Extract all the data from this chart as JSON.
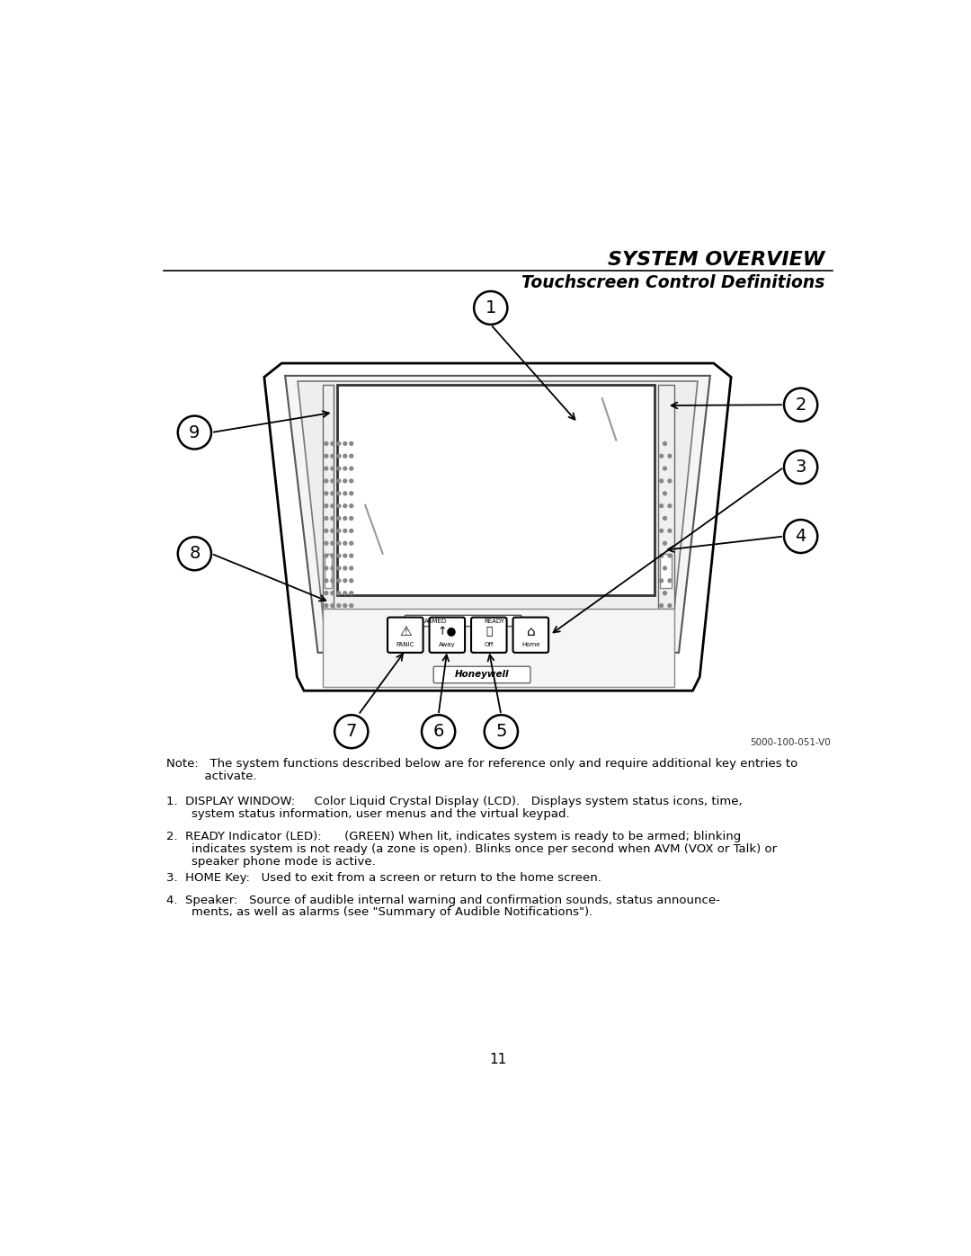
{
  "title1": "SYSTEM OVERVIEW",
  "title2": "Touchscreen Control Definitions",
  "page_number": "11",
  "ref_code": "5000-100-051-V0",
  "bg_color": "#ffffff",
  "text_color": "#000000",
  "note_line1": "Note:   The system functions described below are for reference only and require additional key entries to",
  "note_line2": "          activate.",
  "item1_line1": "1.  DISPLAY WINDOW:     Color Liquid Crystal Display (LCD).   Displays system status icons, time,",
  "item1_line2": "    system status information, user menus and the virtual keypad.",
  "item2_line1": "2.  READY Indicator (LED):      (GREEN) When lit, indicates system is ready to be armed; blinking",
  "item2_line2": "    indicates system is not ready (a zone is open). Blinks once per second when AVM (VOX or Talk) or",
  "item2_line3": "    speaker phone mode is active.",
  "item3_line1": "3.  HOME Key:   Used to exit from a screen or return to the home screen.",
  "item4_line1": "4.  Speaker:   Source of audible internal warning and confirmation sounds, status announce-",
  "item4_line2": "    ments, as well as alarms (see \"Summary of Audible Notifications\")."
}
